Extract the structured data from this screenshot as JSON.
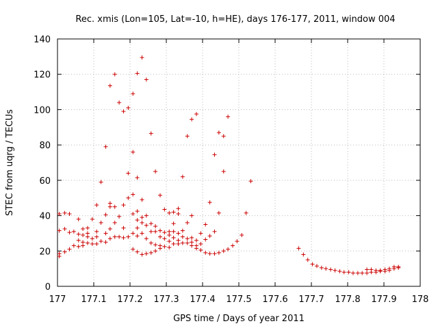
{
  "chart_data": {
    "type": "scatter",
    "title": "Rec. xmis (Lon=105, Lat=-10, h=HE), days 176-177, 2011, window 004",
    "xlabel": "GPS time / Days of year 2011",
    "ylabel": "STEC from uqrg / TECUs",
    "xlim": [
      177,
      178
    ],
    "ylim": [
      0,
      140
    ],
    "xticks": [
      177,
      177.1,
      177.2,
      177.3,
      177.4,
      177.5,
      177.6,
      177.7,
      177.8,
      177.9,
      178
    ],
    "xtick_labels": [
      "177",
      "177.1",
      "177.2",
      "177.3",
      "177.4",
      "177.5",
      "177.6",
      "177.7",
      "177.8",
      "177.9",
      "178"
    ],
    "yticks": [
      0,
      20,
      40,
      60,
      80,
      100,
      120,
      140
    ],
    "ytick_labels": [
      "0",
      "20",
      "40",
      "60",
      "80",
      "100",
      "120",
      "140"
    ],
    "grid": true,
    "marker": "+",
    "color": "#cc0000",
    "points": [
      [
        177.005,
        17
      ],
      [
        177.005,
        18.5
      ],
      [
        177.005,
        31.5
      ],
      [
        177.005,
        41
      ],
      [
        177.02,
        19.5
      ],
      [
        177.02,
        32.5
      ],
      [
        177.02,
        41.5
      ],
      [
        177.033,
        21
      ],
      [
        177.033,
        30.5
      ],
      [
        177.033,
        41
      ],
      [
        177.045,
        23
      ],
      [
        177.045,
        31
      ],
      [
        177.058,
        22.5
      ],
      [
        177.058,
        26
      ],
      [
        177.058,
        29.5
      ],
      [
        177.058,
        38
      ],
      [
        177.07,
        23
      ],
      [
        177.07,
        25
      ],
      [
        177.07,
        29
      ],
      [
        177.07,
        32.5
      ],
      [
        177.083,
        24.5
      ],
      [
        177.083,
        28
      ],
      [
        177.083,
        30
      ],
      [
        177.083,
        33
      ],
      [
        177.096,
        24
      ],
      [
        177.096,
        27
      ],
      [
        177.096,
        38
      ],
      [
        177.108,
        24
      ],
      [
        177.108,
        28
      ],
      [
        177.108,
        31
      ],
      [
        177.108,
        46
      ],
      [
        177.12,
        25.5
      ],
      [
        177.12,
        36
      ],
      [
        177.12,
        59
      ],
      [
        177.133,
        25
      ],
      [
        177.133,
        30
      ],
      [
        177.133,
        40.5
      ],
      [
        177.133,
        79
      ],
      [
        177.145,
        27
      ],
      [
        177.145,
        32.5
      ],
      [
        177.145,
        45
      ],
      [
        177.145,
        47
      ],
      [
        177.145,
        113.5
      ],
      [
        177.158,
        28
      ],
      [
        177.158,
        36
      ],
      [
        177.158,
        45
      ],
      [
        177.158,
        120
      ],
      [
        177.17,
        28
      ],
      [
        177.17,
        39.5
      ],
      [
        177.17,
        104
      ],
      [
        177.182,
        27.5
      ],
      [
        177.182,
        33
      ],
      [
        177.182,
        46
      ],
      [
        177.182,
        99
      ],
      [
        177.195,
        28
      ],
      [
        177.195,
        50
      ],
      [
        177.195,
        64
      ],
      [
        177.195,
        101
      ],
      [
        177.208,
        21
      ],
      [
        177.208,
        30
      ],
      [
        177.208,
        41
      ],
      [
        177.208,
        52
      ],
      [
        177.208,
        76
      ],
      [
        177.208,
        109
      ],
      [
        177.22,
        19.5
      ],
      [
        177.22,
        28.5
      ],
      [
        177.22,
        33
      ],
      [
        177.22,
        37.5
      ],
      [
        177.22,
        42.5
      ],
      [
        177.22,
        61.5
      ],
      [
        177.22,
        120.5
      ],
      [
        177.233,
        18
      ],
      [
        177.233,
        30
      ],
      [
        177.233,
        36
      ],
      [
        177.233,
        39
      ],
      [
        177.233,
        49
      ],
      [
        177.233,
        129.5
      ],
      [
        177.245,
        18.5
      ],
      [
        177.245,
        27
      ],
      [
        177.245,
        34.5
      ],
      [
        177.245,
        40
      ],
      [
        177.245,
        117
      ],
      [
        177.258,
        19
      ],
      [
        177.258,
        24.5
      ],
      [
        177.258,
        31
      ],
      [
        177.258,
        35.5
      ],
      [
        177.258,
        86.5
      ],
      [
        177.27,
        20
      ],
      [
        177.27,
        23.5
      ],
      [
        177.27,
        31
      ],
      [
        177.27,
        34
      ],
      [
        177.27,
        65
      ],
      [
        177.283,
        21.5
      ],
      [
        177.283,
        23
      ],
      [
        177.283,
        28
      ],
      [
        177.283,
        31.5
      ],
      [
        177.283,
        51.5
      ],
      [
        177.295,
        22.5
      ],
      [
        177.295,
        27
      ],
      [
        177.295,
        30.5
      ],
      [
        177.295,
        43.5
      ],
      [
        177.308,
        22
      ],
      [
        177.308,
        25.5
      ],
      [
        177.308,
        29
      ],
      [
        177.308,
        31
      ],
      [
        177.308,
        41.5
      ],
      [
        177.32,
        24
      ],
      [
        177.32,
        27.5
      ],
      [
        177.32,
        31
      ],
      [
        177.32,
        35.5
      ],
      [
        177.32,
        42
      ],
      [
        177.333,
        24
      ],
      [
        177.333,
        26
      ],
      [
        177.333,
        30
      ],
      [
        177.333,
        41
      ],
      [
        177.333,
        44
      ],
      [
        177.345,
        24.5
      ],
      [
        177.345,
        28
      ],
      [
        177.345,
        31.5
      ],
      [
        177.345,
        62
      ],
      [
        177.358,
        24.5
      ],
      [
        177.358,
        27
      ],
      [
        177.358,
        36
      ],
      [
        177.358,
        85
      ],
      [
        177.37,
        23
      ],
      [
        177.37,
        25
      ],
      [
        177.37,
        27.5
      ],
      [
        177.37,
        40
      ],
      [
        177.37,
        94.5
      ],
      [
        177.383,
        21.5
      ],
      [
        177.383,
        23
      ],
      [
        177.383,
        26
      ],
      [
        177.383,
        97.5
      ],
      [
        177.395,
        20.5
      ],
      [
        177.395,
        24
      ],
      [
        177.395,
        30
      ],
      [
        177.408,
        19
      ],
      [
        177.408,
        26.5
      ],
      [
        177.408,
        35
      ],
      [
        177.42,
        18.5
      ],
      [
        177.42,
        28.5
      ],
      [
        177.42,
        47.5
      ],
      [
        177.433,
        18.5
      ],
      [
        177.433,
        31
      ],
      [
        177.433,
        74.5
      ],
      [
        177.445,
        19
      ],
      [
        177.445,
        41.5
      ],
      [
        177.445,
        87
      ],
      [
        177.458,
        20
      ],
      [
        177.458,
        65
      ],
      [
        177.458,
        85
      ],
      [
        177.47,
        21
      ],
      [
        177.47,
        96
      ],
      [
        177.483,
        23
      ],
      [
        177.495,
        25.5
      ],
      [
        177.508,
        29
      ],
      [
        177.52,
        41.5
      ],
      [
        177.533,
        59.5
      ],
      [
        177.665,
        21.5
      ],
      [
        177.678,
        18
      ],
      [
        177.69,
        15
      ],
      [
        177.703,
        12.5
      ],
      [
        177.715,
        11.5
      ],
      [
        177.728,
        10.5
      ],
      [
        177.74,
        10
      ],
      [
        177.753,
        9.5
      ],
      [
        177.765,
        9
      ],
      [
        177.778,
        8.5
      ],
      [
        177.79,
        8
      ],
      [
        177.803,
        8
      ],
      [
        177.815,
        7.5
      ],
      [
        177.828,
        7.5
      ],
      [
        177.84,
        7.5
      ],
      [
        177.853,
        7.5
      ],
      [
        177.853,
        9.5
      ],
      [
        177.865,
        8
      ],
      [
        177.865,
        9.5
      ],
      [
        177.878,
        8
      ],
      [
        177.878,
        9
      ],
      [
        177.89,
        8.5
      ],
      [
        177.89,
        9
      ],
      [
        177.903,
        8.5
      ],
      [
        177.903,
        9.5
      ],
      [
        177.915,
        9
      ],
      [
        177.915,
        10
      ],
      [
        177.928,
        10
      ],
      [
        177.928,
        11
      ],
      [
        177.94,
        10.5
      ],
      [
        177.94,
        11
      ]
    ]
  }
}
